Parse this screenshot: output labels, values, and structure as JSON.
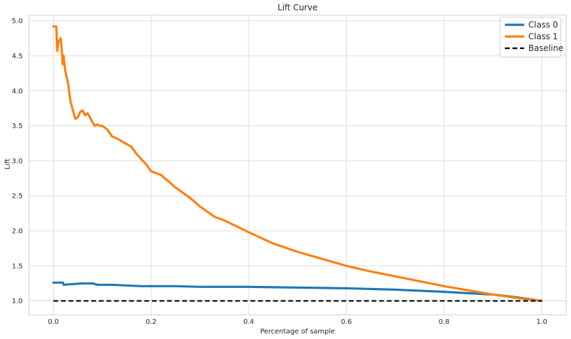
{
  "chart_data": {
    "type": "line",
    "title": "Lift Curve",
    "xlabel": "Percentage of sample",
    "ylabel": "Lift",
    "xlim": [
      -0.05,
      1.05
    ],
    "ylim": [
      0.8,
      5.08
    ],
    "xticks": [
      0.0,
      0.2,
      0.4,
      0.6,
      0.8,
      1.0
    ],
    "xtick_labels": [
      "0.0",
      "0.2",
      "0.4",
      "0.6",
      "0.8",
      "1.0"
    ],
    "yticks": [
      1.0,
      1.5,
      2.0,
      2.5,
      3.0,
      3.5,
      4.0,
      4.5,
      5.0
    ],
    "ytick_labels": [
      "1.0",
      "1.5",
      "2.0",
      "2.5",
      "3.0",
      "3.5",
      "4.0",
      "4.5",
      "5.0"
    ],
    "grid": true,
    "legend_position": "top-right",
    "series": [
      {
        "name": "Class 0",
        "color": "#1f77b4",
        "x": [
          0.0,
          0.02,
          0.021,
          0.04,
          0.06,
          0.08,
          0.09,
          0.1,
          0.12,
          0.15,
          0.18,
          0.2,
          0.25,
          0.3,
          0.4,
          0.5,
          0.6,
          0.7,
          0.8,
          0.9,
          0.95,
          1.0
        ],
        "y": [
          1.26,
          1.26,
          1.23,
          1.24,
          1.25,
          1.25,
          1.23,
          1.23,
          1.23,
          1.22,
          1.21,
          1.21,
          1.21,
          1.2,
          1.2,
          1.19,
          1.18,
          1.16,
          1.13,
          1.09,
          1.05,
          1.0
        ]
      },
      {
        "name": "Class 1",
        "color": "#ff7f0e",
        "x": [
          0.0,
          0.006,
          0.008,
          0.01,
          0.012,
          0.015,
          0.017,
          0.019,
          0.021,
          0.024,
          0.027,
          0.03,
          0.035,
          0.04,
          0.045,
          0.05,
          0.055,
          0.06,
          0.065,
          0.07,
          0.075,
          0.08,
          0.085,
          0.09,
          0.095,
          0.1,
          0.11,
          0.12,
          0.13,
          0.14,
          0.16,
          0.17,
          0.19,
          0.2,
          0.22,
          0.25,
          0.28,
          0.3,
          0.33,
          0.35,
          0.4,
          0.45,
          0.5,
          0.55,
          0.6,
          0.65,
          0.7,
          0.75,
          0.8,
          0.85,
          0.9,
          0.95,
          1.0
        ],
        "y": [
          4.92,
          4.92,
          4.57,
          4.68,
          4.72,
          4.75,
          4.62,
          4.38,
          4.5,
          4.3,
          4.2,
          4.12,
          3.85,
          3.72,
          3.6,
          3.62,
          3.7,
          3.72,
          3.65,
          3.68,
          3.62,
          3.55,
          3.5,
          3.52,
          3.5,
          3.5,
          3.45,
          3.35,
          3.32,
          3.28,
          3.2,
          3.1,
          2.95,
          2.85,
          2.8,
          2.62,
          2.47,
          2.35,
          2.2,
          2.15,
          1.98,
          1.82,
          1.7,
          1.6,
          1.5,
          1.42,
          1.35,
          1.28,
          1.21,
          1.15,
          1.09,
          1.04,
          1.0
        ]
      },
      {
        "name": "Baseline",
        "color": "#000000",
        "dashed": true,
        "x": [
          0.0,
          1.0
        ],
        "y": [
          1.0,
          1.0
        ]
      }
    ]
  }
}
